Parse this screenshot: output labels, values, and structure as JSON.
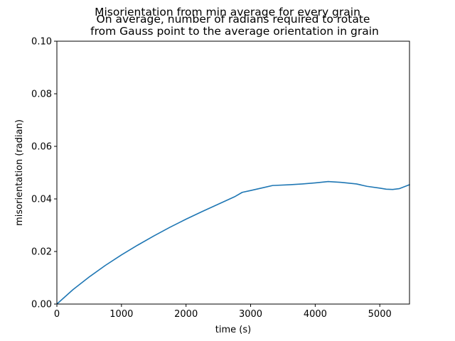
{
  "chart_data": {
    "type": "line",
    "title_lines": [
      "Misorientation from min average for every grain",
      "On average, number of radians required to rotate",
      "from Gauss point to the average orientation in grain"
    ],
    "xlabel": "time (s)",
    "ylabel": "misorientation (radian)",
    "xlim": [
      0,
      5460
    ],
    "ylim": [
      0,
      0.1
    ],
    "x_ticks": [
      0,
      1000,
      2000,
      3000,
      4000,
      5000
    ],
    "x_tick_labels": [
      "0",
      "1000",
      "2000",
      "3000",
      "4000",
      "5000"
    ],
    "y_ticks": [
      0,
      0.02,
      0.04,
      0.06,
      0.08,
      0.1
    ],
    "y_tick_labels": [
      "0.00",
      "0.02",
      "0.04",
      "0.06",
      "0.08",
      "0.10"
    ],
    "grid": false,
    "legend": "none",
    "series": [
      {
        "color": "#1f77b4",
        "x": [
          0,
          250,
          500,
          750,
          1000,
          1250,
          1500,
          1750,
          2000,
          2250,
          2500,
          2750,
          2870,
          3000,
          3200,
          3340,
          3600,
          3800,
          4000,
          4200,
          4400,
          4640,
          4800,
          5000,
          5100,
          5200,
          5300,
          5460
        ],
        "y": [
          0,
          0.0055,
          0.0103,
          0.0147,
          0.0187,
          0.0224,
          0.0259,
          0.0292,
          0.0323,
          0.0352,
          0.038,
          0.0408,
          0.0425,
          0.0432,
          0.0443,
          0.0451,
          0.0454,
          0.0457,
          0.0461,
          0.0466,
          0.0463,
          0.0457,
          0.0448,
          0.0441,
          0.0437,
          0.0436,
          0.0439,
          0.0454
        ]
      }
    ]
  }
}
